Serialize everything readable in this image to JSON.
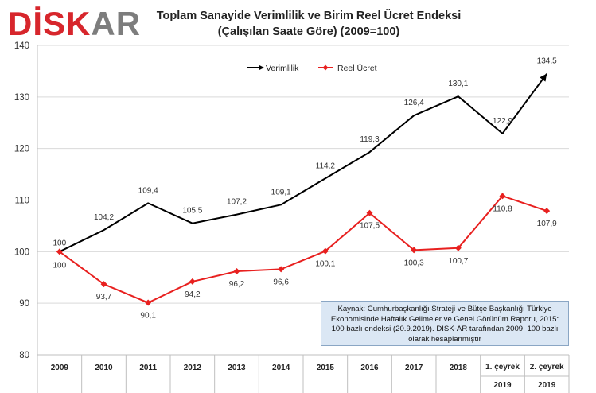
{
  "logo": {
    "part1": "DİSK",
    "part2": "AR",
    "colors": {
      "part1": "#d7262c",
      "part2": "#7d7d7d"
    }
  },
  "title": {
    "line1": "Toplam Sanayide Verimlilik ve  Birim Reel Ücret Endeksi",
    "line2": "(Çalışılan Saate Göre) (2009=100)"
  },
  "source_note": "Kaynak: Cumhurbaşkanlığı Strateji ve Bütçe Başkanlığı Türkiye Ekonomisinde Haftalık Gelimeler ve Genel Görünüm Raporu, 2015: 100 bazlı endeksi  (20.9.2019). DİSK-AR tarafından 2009: 100 bazlı olarak hesaplanmıştır",
  "chart_data": {
    "type": "line",
    "categories": [
      "2009",
      "2010",
      "2011",
      "2012",
      "2013",
      "2014",
      "2015",
      "2016",
      "2017",
      "2018",
      "1. çeyrek 2019",
      "2. çeyrek 2019"
    ],
    "category_labels": [
      [
        "2009"
      ],
      [
        "2010"
      ],
      [
        "2011"
      ],
      [
        "2012"
      ],
      [
        "2013"
      ],
      [
        "2014"
      ],
      [
        "2015"
      ],
      [
        "2016"
      ],
      [
        "2017"
      ],
      [
        "2018"
      ],
      [
        "1. çeyrek",
        "2019"
      ],
      [
        "2. çeyrek",
        "2019"
      ]
    ],
    "series": [
      {
        "name": "Verimlilik",
        "color": "#000000",
        "marker": "arrow",
        "values": [
          100,
          104.2,
          109.4,
          105.5,
          107.2,
          109.1,
          114.2,
          119.3,
          126.4,
          130.1,
          122.9,
          134.5
        ],
        "labels": [
          "100",
          "104,2",
          "109,4",
          "105,5",
          "107,2",
          "109,1",
          "114,2",
          "119,3",
          "126,4",
          "130,1",
          "122,9",
          "134,5"
        ]
      },
      {
        "name": "Reel Ücret",
        "color": "#e8201f",
        "marker": "diamond",
        "values": [
          100,
          93.7,
          90.1,
          94.2,
          96.2,
          96.6,
          100.1,
          107.5,
          100.3,
          100.7,
          110.8,
          107.9
        ],
        "labels": [
          "100",
          "93,7",
          "90,1",
          "94,2",
          "96,2",
          "96,6",
          "100,1",
          "107,5",
          "100,3",
          "100,7",
          "110,8",
          "107,9"
        ]
      }
    ],
    "y_ticks": [
      80,
      90,
      100,
      110,
      120,
      130,
      140
    ],
    "ylim": [
      80,
      140
    ],
    "grid": true,
    "legend_position": "top-center"
  }
}
